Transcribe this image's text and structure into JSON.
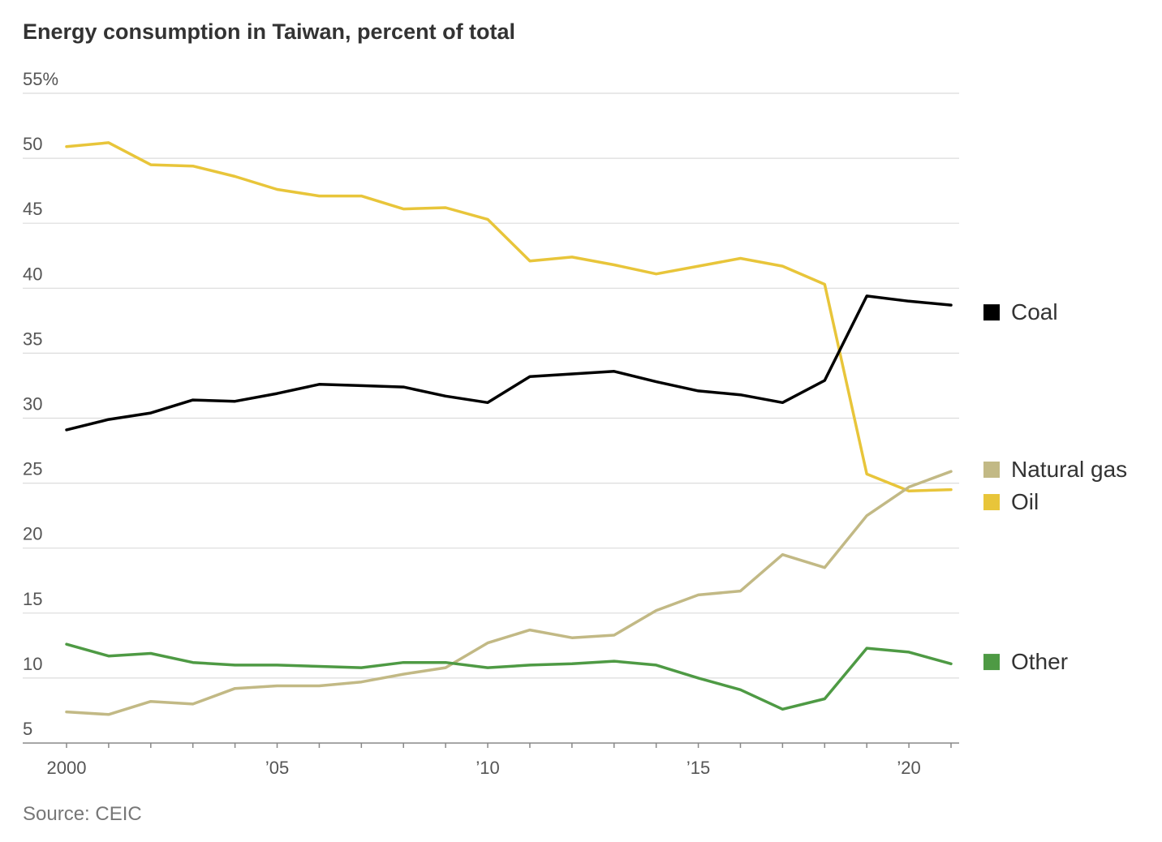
{
  "chart_data": {
    "type": "line",
    "title": "Energy consumption in Taiwan, percent of total",
    "source": "Source: CEIC",
    "xlabel": "",
    "ylabel": "",
    "x": [
      2000,
      2001,
      2002,
      2003,
      2004,
      2005,
      2006,
      2007,
      2008,
      2009,
      2010,
      2011,
      2012,
      2013,
      2014,
      2015,
      2016,
      2017,
      2018,
      2019,
      2020,
      2021
    ],
    "xlim": [
      2000,
      2021
    ],
    "ylim": [
      5,
      55
    ],
    "x_ticks": [
      {
        "value": 2000,
        "label": "2000"
      },
      {
        "value": 2005,
        "label": "’05"
      },
      {
        "value": 2010,
        "label": "’10"
      },
      {
        "value": 2015,
        "label": "’15"
      },
      {
        "value": 2020,
        "label": "’20"
      }
    ],
    "y_ticks": [
      {
        "value": 55,
        "label": "55%"
      },
      {
        "value": 50,
        "label": "50"
      },
      {
        "value": 45,
        "label": "45"
      },
      {
        "value": 40,
        "label": "40"
      },
      {
        "value": 35,
        "label": "35"
      },
      {
        "value": 30,
        "label": "30"
      },
      {
        "value": 25,
        "label": "25"
      },
      {
        "value": 20,
        "label": "20"
      },
      {
        "value": 15,
        "label": "15"
      },
      {
        "value": 10,
        "label": "10"
      },
      {
        "value": 5,
        "label": "5"
      }
    ],
    "grid": true,
    "legend_position": "right, labels at line ends",
    "series": [
      {
        "name": "Oil",
        "color": "#e8c53a",
        "values": [
          50.9,
          51.2,
          49.5,
          49.4,
          48.6,
          47.6,
          47.1,
          47.1,
          46.1,
          46.2,
          45.3,
          42.1,
          42.4,
          41.8,
          41.1,
          41.7,
          42.3,
          41.7,
          40.3,
          25.7,
          24.4,
          24.5
        ]
      },
      {
        "name": "Coal",
        "color": "#000000",
        "values": [
          29.1,
          29.9,
          30.4,
          31.4,
          31.3,
          31.9,
          32.6,
          32.5,
          32.4,
          31.7,
          31.2,
          33.2,
          33.4,
          33.6,
          32.8,
          32.1,
          31.8,
          31.2,
          32.9,
          39.4,
          39.0,
          38.7
        ]
      },
      {
        "name": "Natural gas",
        "color": "#c2b985",
        "values": [
          7.4,
          7.2,
          8.2,
          8.0,
          9.2,
          9.4,
          9.4,
          9.7,
          10.3,
          10.8,
          12.7,
          13.7,
          13.1,
          13.3,
          15.2,
          16.4,
          16.7,
          19.5,
          18.5,
          22.5,
          24.7,
          25.9
        ]
      },
      {
        "name": "Other",
        "color": "#4e9a44",
        "values": [
          12.6,
          11.7,
          11.9,
          11.2,
          11.0,
          11.0,
          10.9,
          10.8,
          11.2,
          11.2,
          10.8,
          11.0,
          11.1,
          11.3,
          11.0,
          10.0,
          9.1,
          7.6,
          8.4,
          12.3,
          12.0,
          11.1
        ]
      }
    ],
    "legend": [
      {
        "name": "Coal",
        "color": "#000000"
      },
      {
        "name": "Natural gas",
        "color": "#c2b985"
      },
      {
        "name": "Oil",
        "color": "#e8c53a"
      },
      {
        "name": "Other",
        "color": "#4e9a44"
      }
    ]
  }
}
